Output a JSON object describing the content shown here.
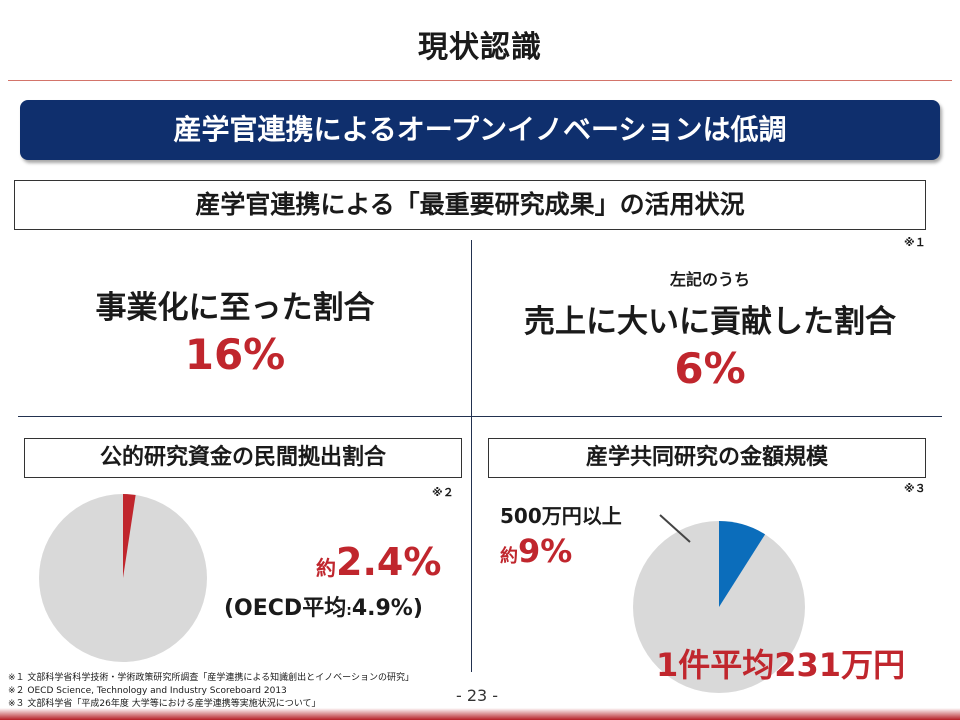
{
  "page_title": "現状認識",
  "banner_text": "産学官連携によるオープンイノベーションは低調",
  "subheading": "産学官連携による「最重要研究成果」の活用状況",
  "note_marks": {
    "n1": "※１",
    "n2": "※２",
    "n3": "※３"
  },
  "left_stat": {
    "label": "事業化に至った割合",
    "value": "16%"
  },
  "right_stat": {
    "prefix": "左記のうち",
    "label": "売上に大いに貢献した割合",
    "value": "6%"
  },
  "public_funding": {
    "box_label": "公的研究資金の民間拠出割合",
    "approx": "約",
    "value": "2.4%",
    "oecd": "(OECD平均",
    "oecd_colon": ":",
    "oecd_value": "4.9%)",
    "slice_fraction": 0.024,
    "colors": {
      "slice": "#c0262d",
      "rest": "#d9d9d9"
    }
  },
  "joint_research": {
    "box_label": "産学共同研究の金額規模",
    "over_label": "500万円以上",
    "approx": "約",
    "value": "9%",
    "average": "1件平均231万円",
    "slice_fraction": 0.09,
    "colors": {
      "slice": "#0b6dbb",
      "rest": "#d9d9d9"
    }
  },
  "footnotes": [
    "※１ 文部科学省科学技術・学術政策研究所調査「産学連携による知識創出とイノベーションの研究」",
    "※２ OECD Science, Technology and Industry Scoreboard 2013",
    "※３ 文部科学省「平成26年度 大学等における産学連携等実施状況について」"
  ],
  "page_number": "- 23 -"
}
